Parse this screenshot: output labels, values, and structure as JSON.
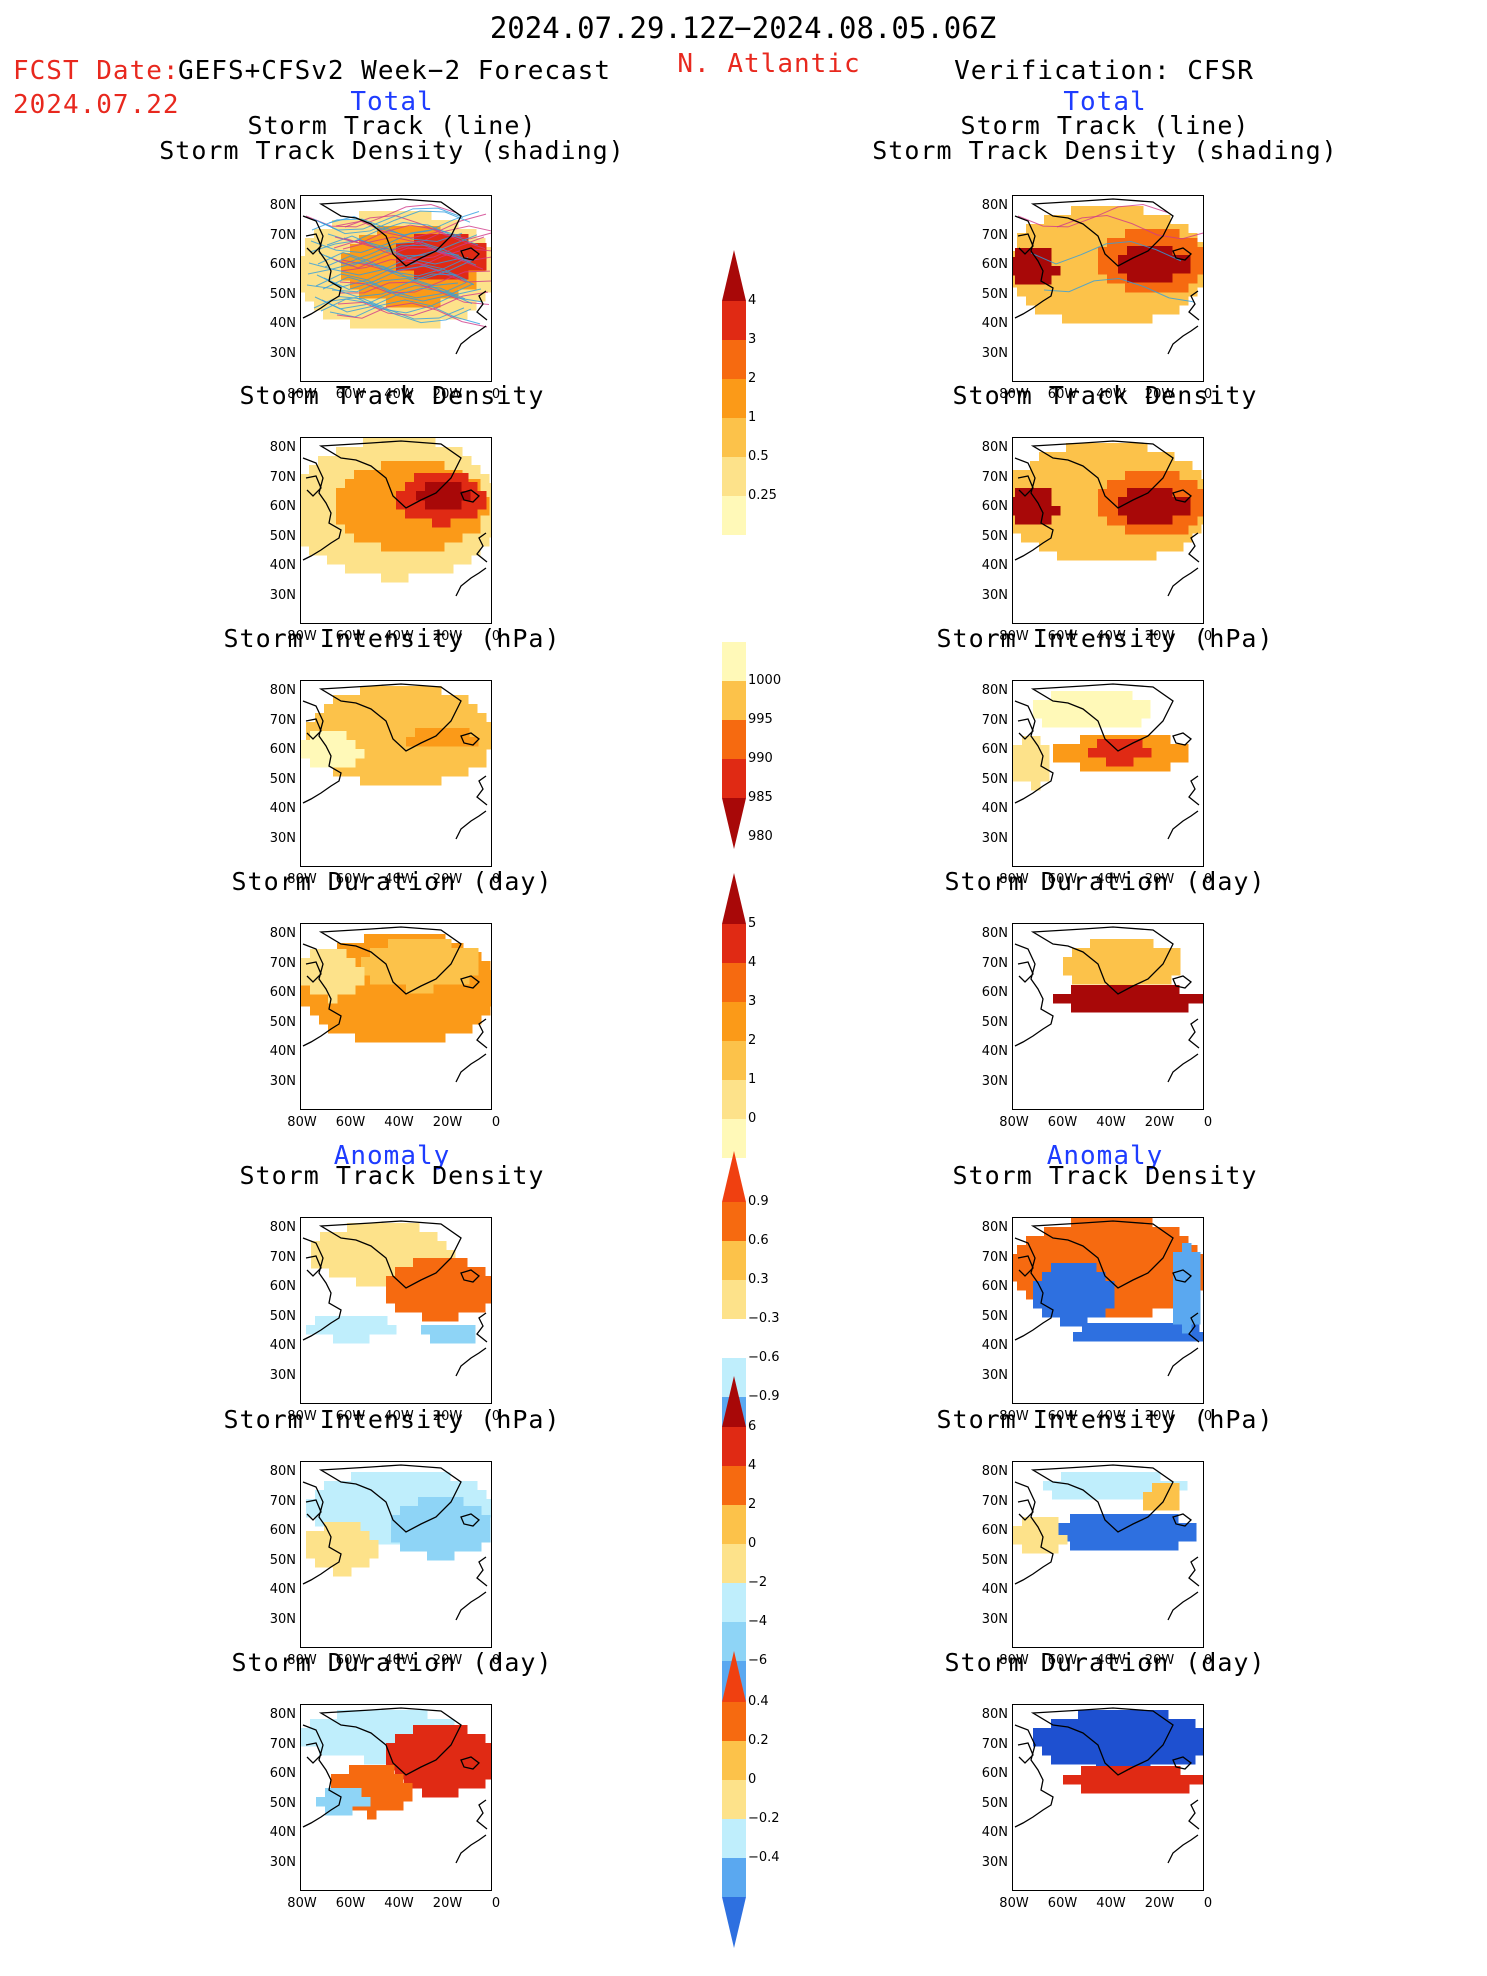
{
  "header": {
    "period": "2024.07.29.12Z−2024.08.05.06Z",
    "fcst_label": "FCST Date:",
    "fcst_model": "GEFS+CFSv2 Week−2 Forecast",
    "fcst_date": "2024.07.22",
    "region": "N. Atlantic",
    "verification": "Verification: CFSR"
  },
  "sections": {
    "total": "Total",
    "anomaly": "Anomaly"
  },
  "panel_titles": {
    "track_line": "Storm Track (line)",
    "track_density_shading": "Storm Track Density (shading)",
    "track_density": "Storm Track Density",
    "intensity": "Storm Intensity (hPa)",
    "duration": "Storm Duration (day)"
  },
  "axes": {
    "lat": [
      "80N",
      "70N",
      "60N",
      "50N",
      "40N",
      "30N"
    ],
    "lon": [
      "80W",
      "60W",
      "40W",
      "20W",
      "0"
    ]
  },
  "colorbars": {
    "density": [
      "4",
      "3",
      "2",
      "1",
      "0.5",
      "0.25"
    ],
    "intensity": [
      "1000",
      "995",
      "990",
      "985",
      "980"
    ],
    "duration": [
      "5",
      "4",
      "3",
      "2",
      "1",
      "0"
    ],
    "density_anom": [
      "0.9",
      "0.6",
      "0.3",
      "−0.3",
      "−0.6",
      "−0.9"
    ],
    "intensity_anom": [
      "6",
      "4",
      "2",
      "0",
      "−2",
      "−4",
      "−6"
    ],
    "duration_anom": [
      "0.4",
      "0.2",
      "0",
      "−0.2",
      "−0.4"
    ]
  },
  "colors": {
    "warm": [
      "#fff9b8",
      "#fde28a",
      "#fcc24a",
      "#fb9a18",
      "#f66a10",
      "#e02a14",
      "#a80808"
    ],
    "cool": [
      "#ffffff",
      "#bfeefc",
      "#8ed4f6",
      "#5aa8f0",
      "#2e70e0",
      "#1e50d0"
    ],
    "red_text": "#e8281e",
    "blue_text": "#1e3cff"
  }
}
